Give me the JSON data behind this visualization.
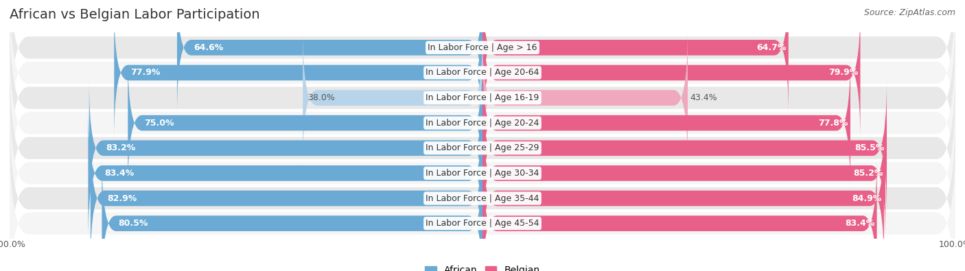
{
  "title": "African vs Belgian Labor Participation",
  "source": "Source: ZipAtlas.com",
  "categories": [
    "In Labor Force | Age > 16",
    "In Labor Force | Age 20-64",
    "In Labor Force | Age 16-19",
    "In Labor Force | Age 20-24",
    "In Labor Force | Age 25-29",
    "In Labor Force | Age 30-34",
    "In Labor Force | Age 35-44",
    "In Labor Force | Age 45-54"
  ],
  "african_values": [
    64.6,
    77.9,
    38.0,
    75.0,
    83.2,
    83.4,
    82.9,
    80.5
  ],
  "belgian_values": [
    64.7,
    79.9,
    43.4,
    77.8,
    85.5,
    85.2,
    84.9,
    83.4
  ],
  "african_color_strong": "#6aaad4",
  "african_color_light": "#b8d4ea",
  "belgian_color_strong": "#e8608a",
  "belgian_color_light": "#f0a8be",
  "bg_row_color_odd": "#e8e8e8",
  "bg_row_color_even": "#f5f5f5",
  "max_value": 100.0,
  "title_fontsize": 14,
  "label_fontsize": 9,
  "value_fontsize": 9,
  "legend_fontsize": 10,
  "source_fontsize": 9,
  "light_rows": [
    2
  ]
}
